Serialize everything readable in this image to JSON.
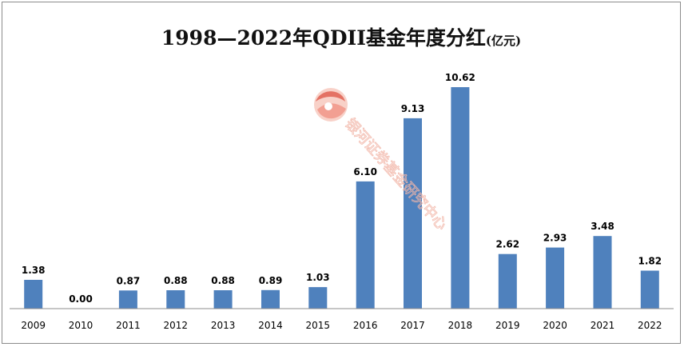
{
  "chart_data": {
    "type": "bar",
    "title": "1998—2022年QDII基金年度分红",
    "title_unit": "(亿元)",
    "xlabel": "",
    "ylabel": "",
    "categories": [
      "2009",
      "2010",
      "2011",
      "2012",
      "2013",
      "2014",
      "2015",
      "2016",
      "2017",
      "2018",
      "2019",
      "2020",
      "2021",
      "2022"
    ],
    "values": [
      1.38,
      0.0,
      0.87,
      0.88,
      0.88,
      0.89,
      1.03,
      6.1,
      9.13,
      10.62,
      2.62,
      2.93,
      3.48,
      1.82
    ],
    "value_labels": [
      "1.38",
      "0.00",
      "0.87",
      "0.88",
      "0.88",
      "0.89",
      "1.03",
      "6.10",
      "9.13",
      "10.62",
      "2.62",
      "2.93",
      "3.48",
      "1.82"
    ],
    "ylim": [
      0,
      11.1
    ],
    "grid": false,
    "legend": "none",
    "bar_color": "#4f81bd"
  },
  "watermark": {
    "text": "银河证券基金研究中心",
    "logo_icon": "galaxy-securities-logo-icon",
    "color": "#e05a4a"
  }
}
